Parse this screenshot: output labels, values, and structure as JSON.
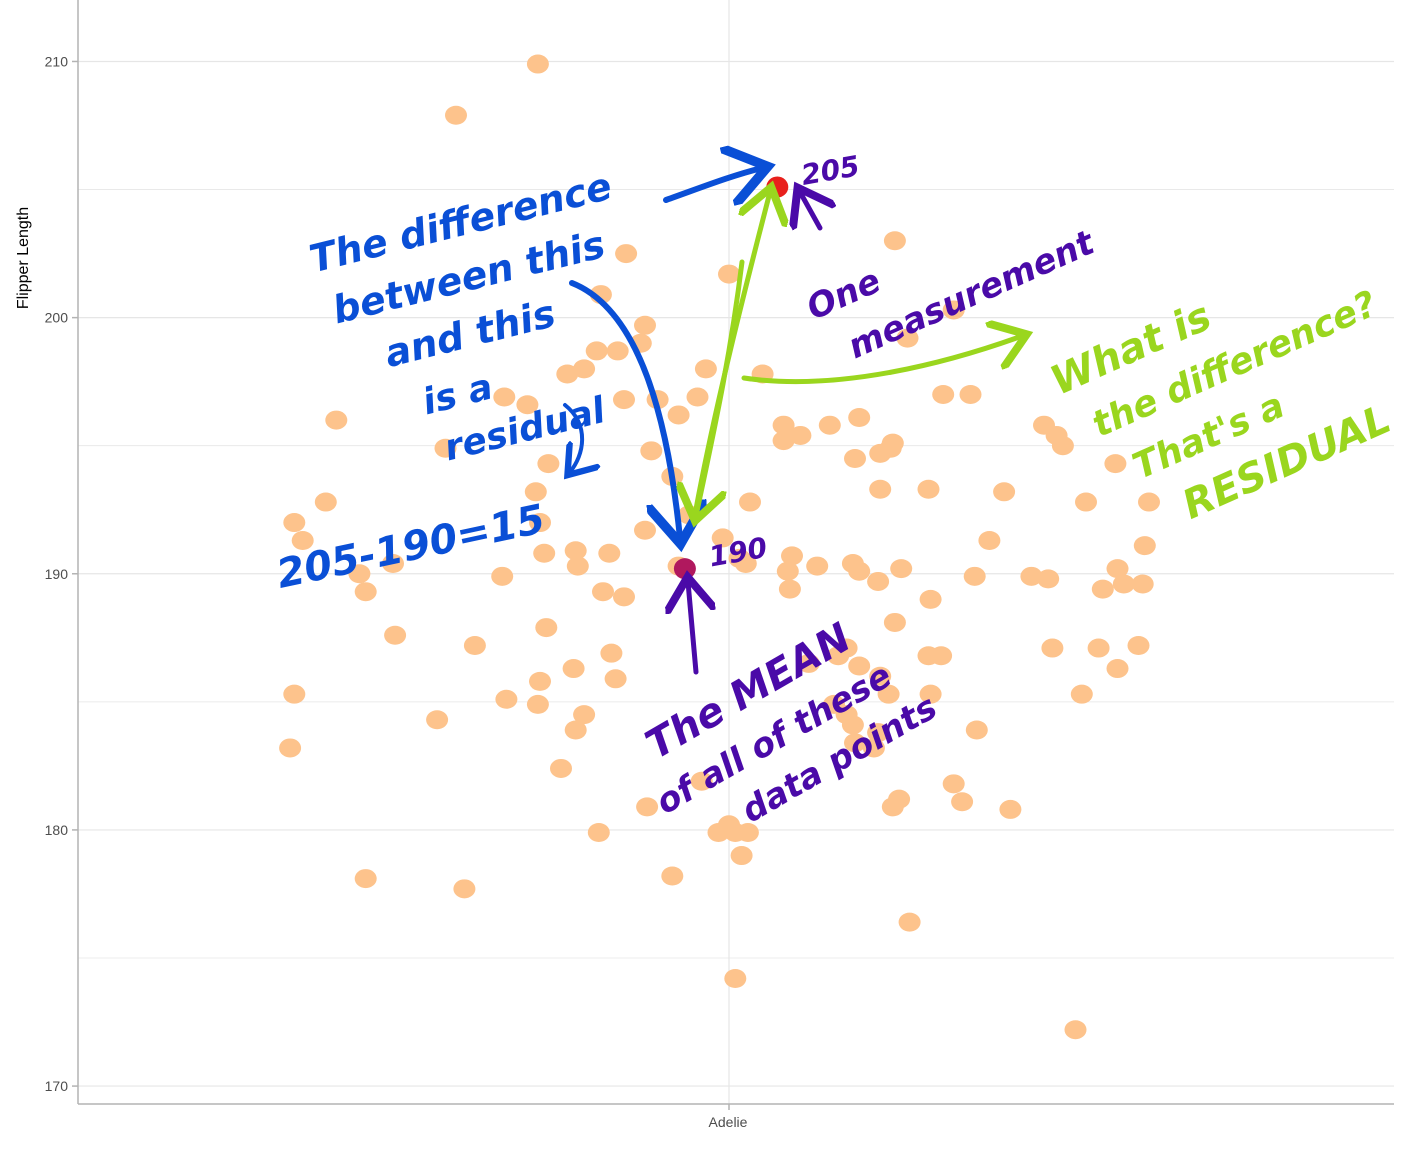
{
  "chart_data": {
    "type": "scatter",
    "title": "",
    "xlabel": "",
    "ylabel": "Flipper Length",
    "categories": [
      "Adelie"
    ],
    "ylim": [
      169.3,
      212.4
    ],
    "yticks": [
      170,
      180,
      190,
      200,
      210
    ],
    "grid": true,
    "points_offset_y": [
      [
        -0.91,
        209.9
      ],
      [
        -1.3,
        207.9
      ],
      [
        -0.49,
        202.5
      ],
      [
        -0.61,
        200.9
      ],
      [
        -0.4,
        199.7
      ],
      [
        -0.42,
        199.0
      ],
      [
        -0.53,
        198.7
      ],
      [
        -0.63,
        198.7
      ],
      [
        -0.77,
        197.8
      ],
      [
        -0.69,
        198.0
      ],
      [
        -0.11,
        198.0
      ],
      [
        -0.34,
        196.8
      ],
      [
        -0.15,
        196.9
      ],
      [
        -1.07,
        196.9
      ],
      [
        -0.96,
        196.6
      ],
      [
        -0.5,
        196.8
      ],
      [
        -0.24,
        196.2
      ],
      [
        -0.37,
        194.8
      ],
      [
        -0.86,
        194.3
      ],
      [
        -0.92,
        193.2
      ],
      [
        -1.35,
        194.9
      ],
      [
        -1.87,
        196.0
      ],
      [
        -0.27,
        193.8
      ],
      [
        -0.4,
        191.7
      ],
      [
        -0.19,
        192.3
      ],
      [
        -0.9,
        192.0
      ],
      [
        -1.92,
        192.8
      ],
      [
        -2.07,
        192.0
      ],
      [
        -2.03,
        191.3
      ],
      [
        -1.76,
        190.0
      ],
      [
        -1.73,
        189.3
      ],
      [
        -1.6,
        190.4
      ],
      [
        -0.88,
        190.8
      ],
      [
        -1.08,
        189.9
      ],
      [
        -0.73,
        190.9
      ],
      [
        -0.57,
        190.8
      ],
      [
        -0.72,
        190.3
      ],
      [
        -0.24,
        190.3
      ],
      [
        -0.03,
        191.4
      ],
      [
        0.05,
        190.6
      ],
      [
        0.08,
        190.4
      ],
      [
        -0.6,
        189.3
      ],
      [
        -0.5,
        189.1
      ],
      [
        -0.87,
        187.9
      ],
      [
        -1.21,
        187.2
      ],
      [
        -1.59,
        187.6
      ],
      [
        -0.56,
        186.9
      ],
      [
        -0.54,
        185.9
      ],
      [
        -0.74,
        186.3
      ],
      [
        -0.9,
        185.8
      ],
      [
        -1.06,
        185.1
      ],
      [
        -0.91,
        184.9
      ],
      [
        -1.39,
        184.3
      ],
      [
        -2.07,
        185.3
      ],
      [
        -2.09,
        183.2
      ],
      [
        -0.69,
        184.5
      ],
      [
        -0.73,
        183.9
      ],
      [
        -0.8,
        182.4
      ],
      [
        -0.39,
        180.9
      ],
      [
        -0.62,
        179.9
      ],
      [
        -0.13,
        181.9
      ],
      [
        -0.05,
        179.9
      ],
      [
        0.0,
        180.2
      ],
      [
        0.03,
        179.9
      ],
      [
        0.09,
        179.9
      ],
      [
        0.06,
        179.0
      ],
      [
        -0.27,
        178.2
      ],
      [
        -1.73,
        178.1
      ],
      [
        -1.26,
        177.7
      ],
      [
        0.03,
        174.2
      ],
      [
        0.86,
        176.4
      ],
      [
        1.65,
        172.2
      ],
      [
        0.79,
        203.0
      ],
      [
        1.07,
        200.3
      ],
      [
        0.85,
        199.2
      ],
      [
        0.0,
        201.7
      ],
      [
        0.16,
        197.8
      ],
      [
        0.62,
        196.1
      ],
      [
        0.48,
        195.8
      ],
      [
        0.34,
        195.4
      ],
      [
        0.26,
        195.8
      ],
      [
        0.26,
        195.2
      ],
      [
        0.72,
        194.7
      ],
      [
        1.02,
        197.0
      ],
      [
        1.5,
        195.8
      ],
      [
        1.56,
        195.4
      ],
      [
        1.59,
        195.0
      ],
      [
        0.77,
        194.9
      ],
      [
        0.78,
        195.1
      ],
      [
        0.6,
        194.5
      ],
      [
        0.95,
        193.3
      ],
      [
        1.31,
        193.2
      ],
      [
        0.72,
        193.3
      ],
      [
        1.7,
        192.8
      ],
      [
        1.84,
        194.3
      ],
      [
        0.1,
        192.8
      ],
      [
        1.24,
        191.3
      ],
      [
        0.3,
        190.7
      ],
      [
        0.42,
        190.3
      ],
      [
        0.28,
        190.1
      ],
      [
        0.62,
        190.1
      ],
      [
        0.59,
        190.4
      ],
      [
        0.82,
        190.2
      ],
      [
        0.71,
        189.7
      ],
      [
        0.79,
        188.1
      ],
      [
        0.96,
        189.0
      ],
      [
        1.17,
        189.9
      ],
      [
        0.29,
        189.4
      ],
      [
        1.44,
        189.9
      ],
      [
        1.52,
        189.8
      ],
      [
        1.85,
        190.2
      ],
      [
        1.88,
        189.6
      ],
      [
        1.97,
        189.6
      ],
      [
        1.78,
        189.4
      ],
      [
        1.98,
        191.1
      ],
      [
        1.95,
        187.2
      ],
      [
        1.54,
        187.1
      ],
      [
        1.76,
        187.1
      ],
      [
        1.85,
        186.3
      ],
      [
        1.68,
        185.3
      ],
      [
        0.95,
        186.8
      ],
      [
        1.01,
        186.8
      ],
      [
        0.52,
        186.8
      ],
      [
        0.56,
        187.1
      ],
      [
        0.38,
        186.5
      ],
      [
        0.62,
        186.4
      ],
      [
        0.72,
        186.0
      ],
      [
        0.76,
        185.3
      ],
      [
        0.96,
        185.3
      ],
      [
        0.5,
        184.9
      ],
      [
        0.56,
        184.5
      ],
      [
        0.59,
        184.1
      ],
      [
        0.6,
        183.4
      ],
      [
        0.71,
        183.8
      ],
      [
        0.69,
        183.2
      ],
      [
        1.18,
        183.9
      ],
      [
        1.07,
        181.8
      ],
      [
        1.11,
        181.1
      ],
      [
        0.81,
        181.2
      ],
      [
        1.34,
        180.8
      ],
      [
        0.78,
        180.9
      ],
      [
        2.0,
        192.8
      ],
      [
        1.15,
        197.0
      ]
    ],
    "highlighted_points": [
      {
        "offset": -0.21,
        "y": 190.2,
        "color": "#b0185e",
        "label": "190"
      },
      {
        "offset": 0.23,
        "y": 205.1,
        "color": "#e8201c",
        "label": "205"
      }
    ],
    "colors": {
      "point": "#fdc38c",
      "grid": "#e6e6e6",
      "axis": "#b3b3b3",
      "blue_ink": "#0a4fd6",
      "purple_ink": "#4a0aa8",
      "green_ink": "#9ad61e"
    }
  },
  "annotations": {
    "blue_note_lines": [
      "The difference",
      "between this",
      "and this",
      "is a",
      "residual"
    ],
    "blue_formula": "205-190=15",
    "purple_measurement_lines": [
      "One",
      "measurement"
    ],
    "purple_mean_lines": [
      "The MEAN",
      "of all of these",
      "data points"
    ],
    "green_lines": [
      "What is",
      "the difference?",
      "That's a",
      "RESIDUAL"
    ]
  }
}
